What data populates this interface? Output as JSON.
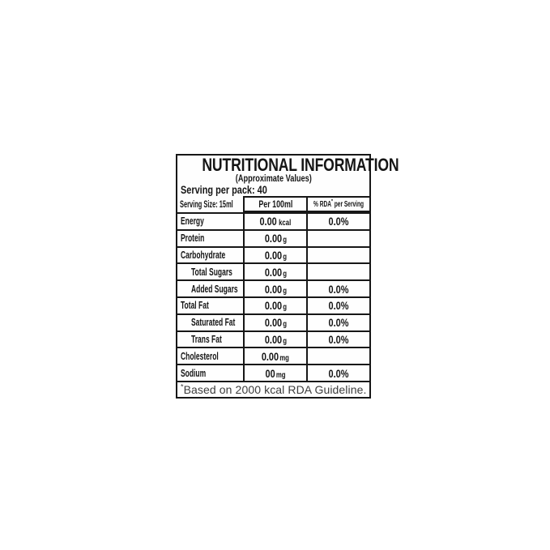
{
  "label": {
    "title": "NUTRITIONAL INFORMATION",
    "subtitle": "(Approximate Values)",
    "serving_per_pack": "Serving per pack: 40",
    "header": {
      "serving_size": "Serving Size: 15ml",
      "per_100ml": "Per 100ml",
      "rda_prefix": "% RDA",
      "rda_sup": "*",
      "rda_suffix": " per Serving"
    },
    "rows": [
      {
        "label": "Energy",
        "value": "0.00",
        "unit": "kcal",
        "rda": "0.0%"
      },
      {
        "label": "Protein",
        "value": "0.00",
        "unit": "g",
        "rda": ""
      },
      {
        "label": "Carbohydrate",
        "value": "0.00",
        "unit": "g",
        "rda": ""
      },
      {
        "label": "Total Sugars",
        "value": "0.00",
        "unit": "g",
        "rda": ""
      },
      {
        "label": "Added Sugars",
        "value": "0.00",
        "unit": "g",
        "rda": "0.0%"
      },
      {
        "label": "Total Fat",
        "value": "0.00",
        "unit": "g",
        "rda": "0.0%"
      },
      {
        "label": "Saturated Fat",
        "value": "0.00",
        "unit": "g",
        "rda": "0.0%"
      },
      {
        "label": "Trans Fat",
        "value": "0.00",
        "unit": "g",
        "rda": "0.0%"
      },
      {
        "label": "Cholesterol",
        "value": "0.00",
        "unit": "mg",
        "rda": ""
      },
      {
        "label": "Sodium",
        "value": "00",
        "unit": "mg",
        "rda": "0.0%"
      }
    ],
    "footnote": {
      "sup": "*",
      "text": "Based on 2000 kcal RDA Guideline."
    },
    "colors": {
      "border": "#171717",
      "text": "#151515",
      "footnote_text": "#3d3d3d",
      "background": "#ffffff"
    }
  }
}
